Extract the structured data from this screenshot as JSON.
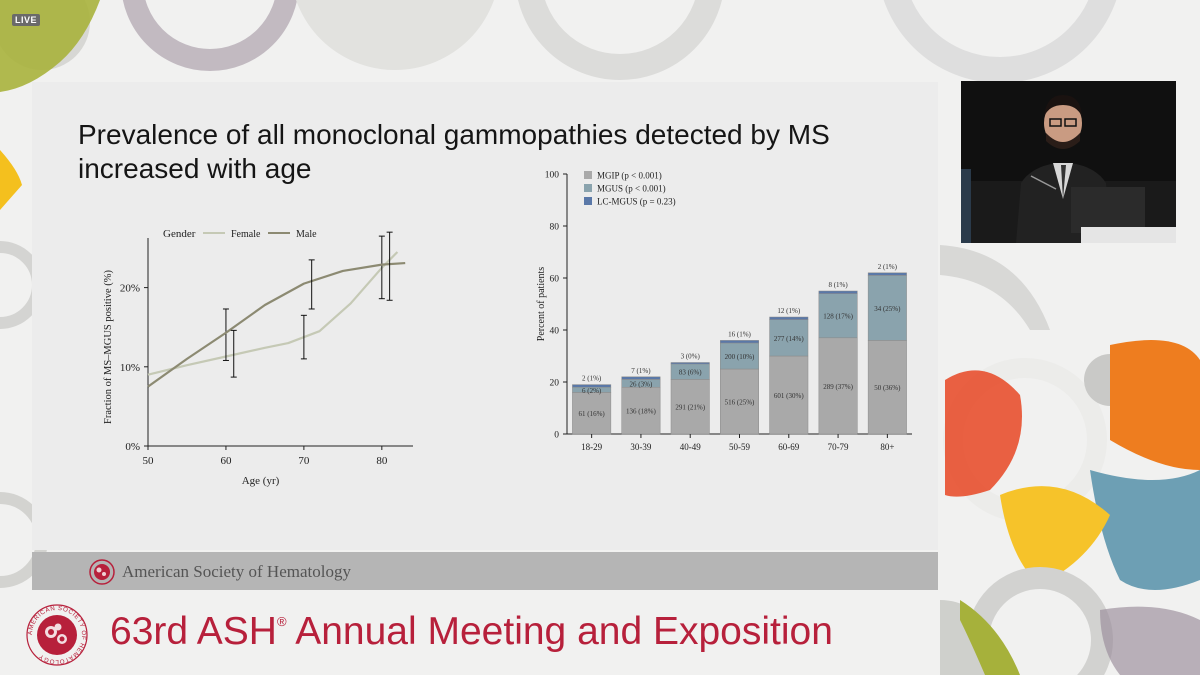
{
  "overlay": {
    "live_badge": "LIVE"
  },
  "slide": {
    "title": "Prevalence of all monoclonal gammopathies detected by MS increased with age",
    "footer_org": "American Society of Hematology"
  },
  "banner": {
    "meeting_prefix": "63rd ASH",
    "registered_mark": "®",
    "meeting_suffix": " Annual Meeting and Exposition",
    "logo_ring_text": "AMERICAN SOCIETY OF HEMATOLOGY"
  },
  "colors": {
    "accent_red": "#b7203b",
    "mgip": "#a9a9a9",
    "mgus": "#8aa3ad",
    "lcmgus": "#5a78a8",
    "female": "#c5c9b5",
    "male": "#8c8a72"
  },
  "chart_data": [
    {
      "type": "line",
      "legend_title": "Gender",
      "ylabel": "Fraction of MS–MGUS positive (%)",
      "xlabel": "Age (yr)",
      "xlim": [
        50,
        84
      ],
      "ylim": [
        0,
        25
      ],
      "xticks": [
        50,
        60,
        70,
        80
      ],
      "yticks": [
        {
          "value": 0,
          "label": "0%"
        },
        {
          "value": 10,
          "label": "10%"
        },
        {
          "value": 20,
          "label": "20%"
        }
      ],
      "series": [
        {
          "name": "Female",
          "x": [
            50,
            55,
            60,
            65,
            68,
            72,
            76,
            80,
            82
          ],
          "y": [
            9,
            10.2,
            11.3,
            12.4,
            13,
            14.5,
            18,
            22.5,
            24.5
          ],
          "error_bars": [
            {
              "x": 60,
              "low": 10.8,
              "high": 17.3
            },
            {
              "x": 70,
              "low": 11,
              "high": 16.5
            },
            {
              "x": 80,
              "low": 18.6,
              "high": 26.5
            }
          ]
        },
        {
          "name": "Male",
          "x": [
            50,
            55,
            60,
            65,
            70,
            75,
            80,
            83
          ],
          "y": [
            7.5,
            11,
            14.3,
            17.8,
            20.5,
            22.1,
            22.9,
            23.1
          ],
          "error_bars": [
            {
              "x": 61,
              "low": 8.7,
              "high": 14.6
            },
            {
              "x": 71,
              "low": 17.3,
              "high": 23.5
            },
            {
              "x": 81,
              "low": 18.4,
              "high": 27
            }
          ]
        }
      ]
    },
    {
      "type": "bar",
      "stacked": true,
      "ylabel": "Percent of patients",
      "ylim": [
        0,
        100
      ],
      "yticks": [
        0,
        20,
        40,
        60,
        80,
        100
      ],
      "categories": [
        "18-29",
        "30-39",
        "40-49",
        "50-59",
        "60-69",
        "70-79",
        "80+"
      ],
      "series": [
        {
          "name": "MGIP (p < 0.001)",
          "values": [
            16,
            18,
            21,
            25,
            30,
            37,
            36
          ],
          "labels": [
            "61 (16%)",
            "136 (18%)",
            "291 (21%)",
            "516 (25%)",
            "601 (30%)",
            "289 (37%)",
            "50 (36%)"
          ]
        },
        {
          "name": "MGUS (p < 0.001)",
          "values": [
            2,
            3,
            6,
            10,
            14,
            17,
            25
          ],
          "labels": [
            "6 (2%)",
            "26 (3%)",
            "83 (6%)",
            "200 (10%)",
            "277 (14%)",
            "128 (17%)",
            "34 (25%)"
          ]
        },
        {
          "name": "LC-MGUS (p = 0.23)",
          "values": [
            1,
            1,
            0.5,
            1,
            1,
            1,
            1
          ],
          "labels": [
            "2 (1%)",
            "7 (1%)",
            "3 (0%)",
            "16 (1%)",
            "12 (1%)",
            "8 (1%)",
            "2 (1%)"
          ]
        }
      ]
    }
  ]
}
